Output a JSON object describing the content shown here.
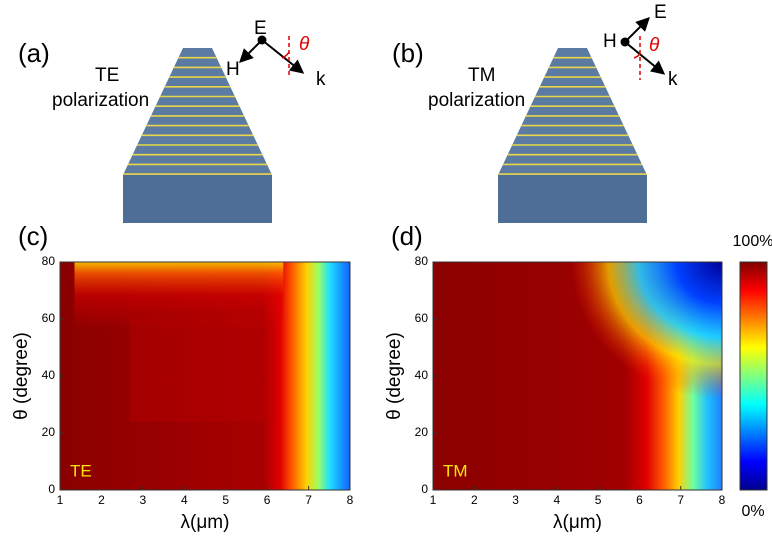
{
  "panels": [
    {
      "label": "(a)",
      "polarization": "TE",
      "caption": "polarization",
      "field_labels": {
        "top": "E",
        "side": "H",
        "wave": "k",
        "angle": "θ"
      }
    },
    {
      "label": "(b)",
      "polarization": "TM",
      "caption": "polarization",
      "field_labels": {
        "top": "E",
        "side": "H",
        "wave": "k",
        "angle": "θ"
      }
    }
  ],
  "chart_data": [
    {
      "type": "heatmap",
      "panel_label": "(c)",
      "annotation": "TE",
      "xlabel": "λ(μm)",
      "ylabel": "θ (degree)",
      "xlim": [
        1,
        8
      ],
      "ylim": [
        0,
        80
      ],
      "xticks": [
        1,
        2,
        3,
        4,
        5,
        6,
        7,
        8
      ],
      "yticks": [
        0,
        20,
        40,
        60,
        80
      ]
    },
    {
      "type": "heatmap",
      "panel_label": "(d)",
      "annotation": "TM",
      "xlabel": "λ(μm)",
      "ylabel": "θ (degree)",
      "xlim": [
        1,
        8
      ],
      "ylim": [
        0,
        80
      ],
      "xticks": [
        1,
        2,
        3,
        4,
        5,
        6,
        7,
        8
      ],
      "yticks": [
        0,
        20,
        40,
        60,
        80
      ]
    }
  ],
  "colorbar": {
    "lim": [
      0,
      100
    ],
    "ticks": [
      {
        "value": 100,
        "label": "100%"
      },
      {
        "value": 0,
        "label": "0%"
      }
    ]
  }
}
